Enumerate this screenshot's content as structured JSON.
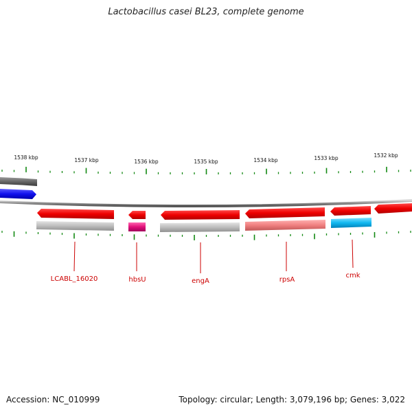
{
  "title": "Lactobacillus casei BL23, complete genome",
  "footer": {
    "accession": "Accession: NC_010999",
    "topology": "Topology: circular; Length: 3,079,196 bp; Genes: 3,022"
  },
  "scale_labels": [
    "1538 kbp",
    "1537 kbp",
    "1536 kbp",
    "1535 kbp",
    "1534 kbp",
    "1533 kbp",
    "1532 kbp"
  ],
  "gene_labels": [
    "LCABL_16020",
    "hbsU",
    "engA",
    "rpsA",
    "cmk"
  ],
  "colors": {
    "gene_red": "#ee0000",
    "rna_gray": "#bbbbbb",
    "rna_pink": "#e0107a",
    "rna_salmon": "#f08080",
    "rna_cyan": "#10b8f0",
    "other_blue": "#1010ee",
    "other_gray": "#666666",
    "tick_green": "#118811",
    "label_red": "#cc0000"
  }
}
